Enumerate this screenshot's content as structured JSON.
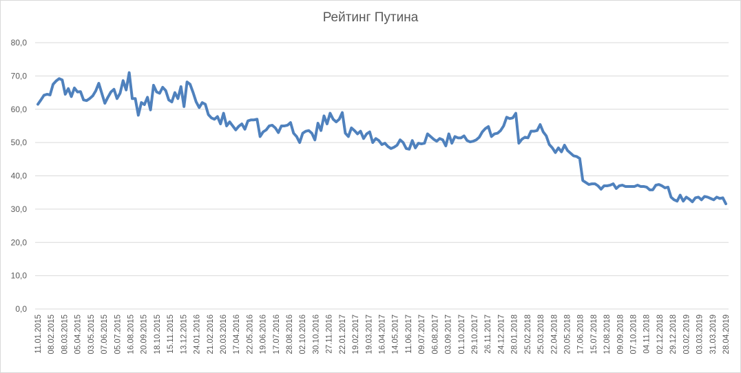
{
  "chart_data": {
    "type": "line",
    "title": "Рейтинг Путина",
    "xlabel": "",
    "ylabel": "",
    "ylim": [
      0,
      80
    ],
    "yticks": [
      "0,0",
      "10,0",
      "20,0",
      "30,0",
      "40,0",
      "50,0",
      "60,0",
      "70,0",
      "80,0"
    ],
    "grid": true,
    "legend": "none",
    "line_color": "#4f81bd",
    "x_tick_labels": [
      "11.01.2015",
      "08.02.2015",
      "08.03.2015",
      "05.04.2015",
      "03.05.2015",
      "07.06.2015",
      "05.07.2015",
      "16.08.2015",
      "20.09.2015",
      "18.10.2015",
      "15.11.2015",
      "13.12.2015",
      "24.01.2016",
      "21.02.2016",
      "20.03.2016",
      "17.04.2016",
      "22.05.2016",
      "19.06.2016",
      "17.07.2016",
      "28.08.2016",
      "02.10.2016",
      "30.10.2016",
      "27.11.2016",
      "22.01.2017",
      "19.02.2017",
      "19.03.2017",
      "16.04.2017",
      "14.05.2017",
      "11.06.2017",
      "09.07.2017",
      "06.08.2017",
      "03.09.2017",
      "01.10.2017",
      "29.10.2017",
      "26.11.2017",
      "24.12.2017",
      "28.01.2018",
      "25.02.2018",
      "25.03.2018",
      "22.04.2018",
      "20.05.2018",
      "17.06.2018",
      "15.07.2018",
      "12.08.2018",
      "09.09.2018",
      "07.10.2018",
      "04.11.2018",
      "02.12.2018",
      "29.12.2018",
      "03.02.2019",
      "03.03.2019",
      "31.03.2019",
      "28.04.2019"
    ],
    "series": [
      {
        "values": [
          61.5,
          62.8,
          64.2,
          64.5,
          64.3,
          67.5,
          68.5,
          69.2,
          68.8,
          64.5,
          66.2,
          63.8,
          66.4,
          65.2,
          65.3,
          62.8,
          62.6,
          63.2,
          64.0,
          65.5,
          67.8,
          64.8,
          61.8,
          63.6,
          65.2,
          66.0,
          63.2,
          64.8,
          68.6,
          65.8,
          71.0,
          63.2,
          63.2,
          58.2,
          62.0,
          61.4,
          63.6,
          59.8,
          67.2,
          65.2,
          64.8,
          66.6,
          65.6,
          62.8,
          62.2,
          65.0,
          63.2,
          66.8,
          60.8,
          68.2,
          67.5,
          65.0,
          62.2,
          60.5,
          62.0,
          61.5,
          58.4,
          57.4,
          57.0,
          57.8,
          55.6,
          58.8,
          55.0,
          56.2,
          55.0,
          53.8,
          54.9,
          55.6,
          54.0,
          56.5,
          56.8,
          56.8,
          57.0,
          51.8,
          53.2,
          53.8,
          55.0,
          55.2,
          54.4,
          53.0,
          55.0,
          55.0,
          55.2,
          56.0,
          52.8,
          51.8,
          50.0,
          52.8,
          53.4,
          53.6,
          52.8,
          50.8,
          55.8,
          53.6,
          58.0,
          55.6,
          58.8,
          57.0,
          56.2,
          57.0,
          59.0,
          52.8,
          51.8,
          54.4,
          53.6,
          52.6,
          53.4,
          51.2,
          52.6,
          53.2,
          50.0,
          51.2,
          50.6,
          49.4,
          49.8,
          48.8,
          48.2,
          48.6,
          49.2,
          50.8,
          50.0,
          48.2,
          48.0,
          50.6,
          48.4,
          49.8,
          49.6,
          49.8,
          52.6,
          51.8,
          51.0,
          50.4,
          51.2,
          50.8,
          49.0,
          52.6,
          49.8,
          51.8,
          51.4,
          51.4,
          52.0,
          50.6,
          50.2,
          50.4,
          50.8,
          51.6,
          53.2,
          54.2,
          54.8,
          51.8,
          52.6,
          52.8,
          53.6,
          55.0,
          57.6,
          57.2,
          57.4,
          58.8,
          49.8,
          51.0,
          51.6,
          51.4,
          53.4,
          53.4,
          53.6,
          55.4,
          53.2,
          52.0,
          49.4,
          48.4,
          47.0,
          48.4,
          47.2,
          49.2,
          47.6,
          46.8,
          46.0,
          45.8,
          45.2,
          38.6,
          38.0,
          37.4,
          37.6,
          37.6,
          37.0,
          36.0,
          37.0,
          37.0,
          37.2,
          37.6,
          36.2,
          37.0,
          37.2,
          36.8,
          36.8,
          36.8,
          36.8,
          37.2,
          36.8,
          36.8,
          36.6,
          35.8,
          35.8,
          37.2,
          37.4,
          37.0,
          36.4,
          36.6,
          33.6,
          32.8,
          32.4,
          34.2,
          32.4,
          33.6,
          33.0,
          32.2,
          33.4,
          33.6,
          32.8,
          33.8,
          33.6,
          33.2,
          32.8,
          33.6,
          33.2,
          33.4,
          31.6
        ]
      }
    ]
  }
}
